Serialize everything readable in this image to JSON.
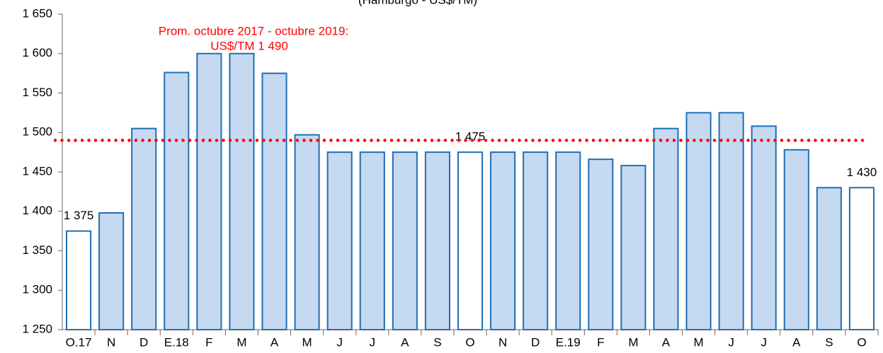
{
  "chart_data": {
    "type": "bar",
    "subtitle": "(Hamburgo - US$/TM)",
    "categories": [
      "O.17",
      "N",
      "D",
      "E.18",
      "F",
      "M",
      "A",
      "M",
      "J",
      "J",
      "A",
      "S",
      "O",
      "N",
      "D",
      "E.19",
      "F",
      "M",
      "A",
      "M",
      "J",
      "J",
      "A",
      "S",
      "O"
    ],
    "values": [
      1375,
      1398,
      1505,
      1576,
      1600,
      1600,
      1575,
      1497,
      1475,
      1475,
      1475,
      1475,
      1475,
      1475,
      1475,
      1475,
      1466,
      1458,
      1505,
      1525,
      1525,
      1508,
      1478,
      1430,
      1430
    ],
    "value_labels": [
      "1 375",
      null,
      null,
      null,
      null,
      null,
      null,
      null,
      null,
      null,
      null,
      null,
      "1 475",
      null,
      null,
      null,
      null,
      null,
      null,
      null,
      null,
      null,
      null,
      null,
      "1 430"
    ],
    "bar_colors": [
      "#ffffff",
      "#c5d9f1",
      "#c5d9f1",
      "#c5d9f1",
      "#c5d9f1",
      "#c5d9f1",
      "#c5d9f1",
      "#c5d9f1",
      "#c5d9f1",
      "#c5d9f1",
      "#c5d9f1",
      "#c5d9f1",
      "#ffffff",
      "#c5d9f1",
      "#c5d9f1",
      "#c5d9f1",
      "#c5d9f1",
      "#c5d9f1",
      "#c5d9f1",
      "#c5d9f1",
      "#c5d9f1",
      "#c5d9f1",
      "#c5d9f1",
      "#c5d9f1",
      "#ffffff"
    ],
    "edge_color": "#1f6fb4",
    "reference_line": {
      "value": 1490,
      "color": "#ff0000",
      "labels": [
        "Prom.  octubre 2017 - octubre 2019:",
        "US$/TM 1 490"
      ]
    },
    "ylim": [
      1250,
      1650
    ],
    "yticks": [
      {
        "value": 1250,
        "label": "1 250"
      },
      {
        "value": 1300,
        "label": "1 300"
      },
      {
        "value": 1350,
        "label": "1 350"
      },
      {
        "value": 1400,
        "label": "1 400"
      },
      {
        "value": 1450,
        "label": "1 450"
      },
      {
        "value": 1500,
        "label": "1 500"
      },
      {
        "value": 1550,
        "label": "1 550"
      },
      {
        "value": 1600,
        "label": "1 600"
      },
      {
        "value": 1650,
        "label": "1 650"
      }
    ],
    "grid": false
  }
}
